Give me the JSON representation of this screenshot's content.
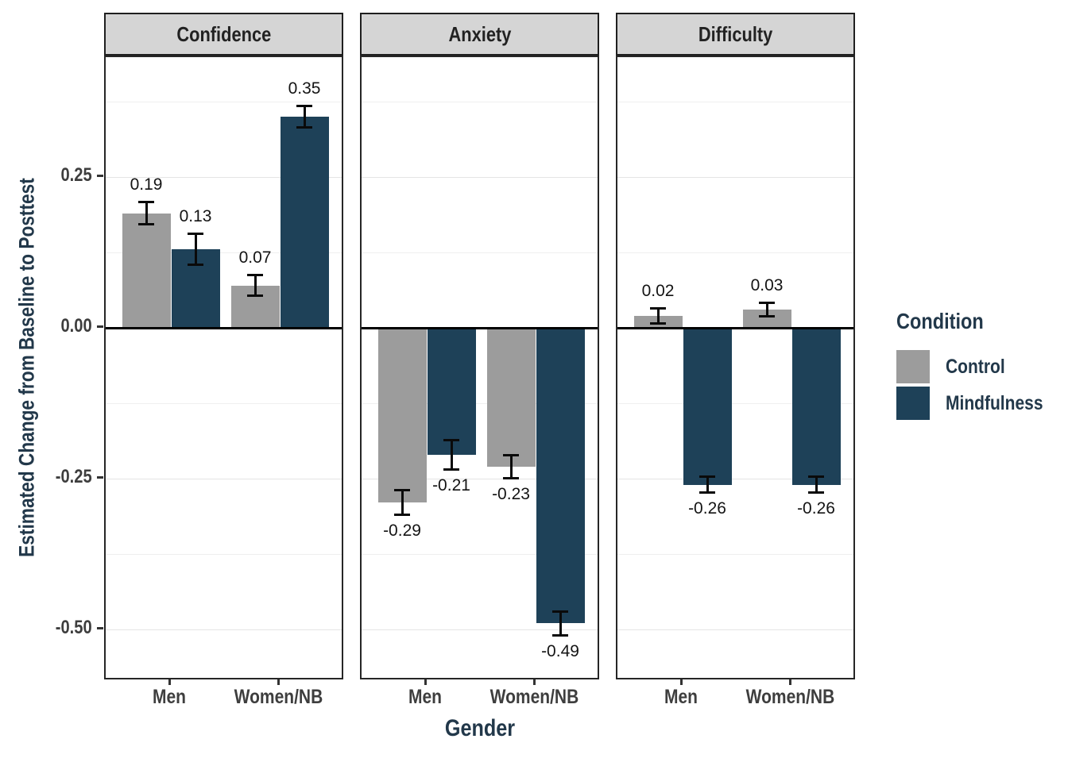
{
  "chart_data": {
    "type": "bar",
    "title": "",
    "xlabel": "Gender",
    "ylabel": "Estimated Change from Baseline to Posttest",
    "categories": [
      "Men",
      "Women/NB"
    ],
    "series": [
      {
        "name": "Control",
        "color": "#9C9C9C"
      },
      {
        "name": "Mindfulness",
        "color": "#1E4158"
      }
    ],
    "legend": {
      "title": "Condition",
      "position": "right"
    },
    "error_bars": true,
    "grid": "horizontal-only",
    "facets": [
      {
        "label": "Confidence",
        "series": [
          {
            "name": "Control",
            "values": [
              0.19,
              0.07
            ],
            "errors": [
              0.019,
              0.018
            ],
            "labels": [
              "0.19",
              "0.07"
            ]
          },
          {
            "name": "Mindfulness",
            "values": [
              0.13,
              0.35
            ],
            "errors": [
              0.026,
              0.019
            ],
            "labels": [
              "0.13",
              "0.35"
            ]
          }
        ]
      },
      {
        "label": "Anxiety",
        "series": [
          {
            "name": "Control",
            "values": [
              -0.29,
              -0.23
            ],
            "errors": [
              0.021,
              0.02
            ],
            "labels": [
              "-0.29",
              "-0.23"
            ]
          },
          {
            "name": "Mindfulness",
            "values": [
              -0.21,
              -0.49
            ],
            "errors": [
              0.025,
              0.02
            ],
            "labels": [
              "-0.21",
              "-0.49"
            ]
          }
        ]
      },
      {
        "label": "Difficulty",
        "series": [
          {
            "name": "Control",
            "values": [
              0.02,
              0.03
            ],
            "errors": [
              0.013,
              0.012
            ],
            "labels": [
              "0.02",
              "0.03"
            ]
          },
          {
            "name": "Mindfulness",
            "values": [
              -0.26,
              -0.26
            ],
            "errors": [
              0.014,
              0.014
            ],
            "labels": [
              "-0.26",
              "-0.26"
            ]
          }
        ]
      }
    ],
    "y_axis": {
      "range": [
        -0.585,
        0.449
      ],
      "ticks": [
        {
          "value": 0.25,
          "label": "0.25"
        },
        {
          "value": 0.0,
          "label": "0.00"
        },
        {
          "value": -0.25,
          "label": "-0.25"
        },
        {
          "value": -0.5,
          "label": "-0.50"
        }
      ],
      "minor_gridlines": [
        0.375,
        0.125,
        -0.125,
        -0.375
      ],
      "major_gridlines": [
        0.25,
        -0.25,
        -0.5
      ]
    },
    "colors": {
      "strip_background": "#D5D5D5",
      "panel_border": "#262626",
      "zero_line": "#000000",
      "axis_title": "#22384A",
      "tick_label": "#3E3E3E",
      "data_label": "#141414"
    }
  }
}
